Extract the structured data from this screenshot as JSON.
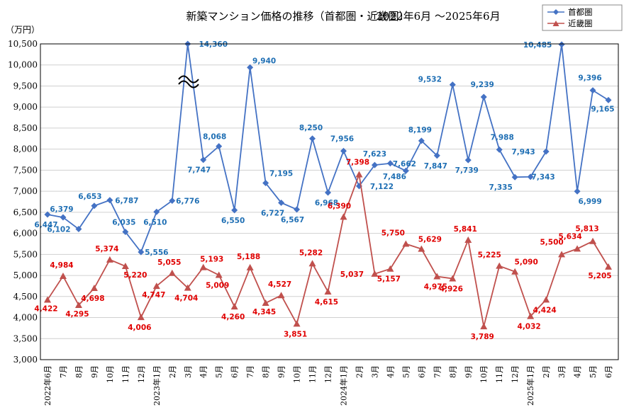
{
  "chart_data": {
    "type": "line",
    "title": "新築マンション価格の推移（首都圏・近畿圏）",
    "period": "2022年6月 〜2025年6月",
    "y_unit": "（万円）",
    "ylim": [
      3000,
      10500
    ],
    "y_ticks": [
      "3,000",
      "3,500",
      "4,000",
      "4,500",
      "5,000",
      "5,500",
      "6,000",
      "6,500",
      "7,000",
      "7,500",
      "8,000",
      "8,500",
      "9,000",
      "9,500",
      "10,000",
      "10,500"
    ],
    "grid": true,
    "legend_position": "top-right",
    "categories": [
      "2022年6月",
      "7月",
      "8月",
      "9月",
      "10月",
      "11月",
      "12月",
      "2023年1月",
      "2月",
      "3月",
      "4月",
      "5月",
      "6月",
      "7月",
      "8月",
      "9月",
      "10月",
      "11月",
      "12月",
      "2024年1月",
      "2月",
      "3月",
      "4月",
      "5月",
      "6月",
      "7月",
      "8月",
      "9月",
      "10月",
      "11月",
      "12月",
      "2025年1月",
      "2月",
      "3月",
      "4月",
      "5月",
      "6月"
    ],
    "axis_break_note": "≈",
    "series": [
      {
        "name": "首都圏",
        "color": "#4472C4",
        "marker": "diamond",
        "values": [
          6447,
          6379,
          6102,
          6653,
          6787,
          6035,
          5556,
          6510,
          6776,
          14360,
          7747,
          8068,
          6550,
          9940,
          7195,
          6727,
          6567,
          8250,
          6968,
          7956,
          7122,
          7623,
          7662,
          7486,
          8199,
          7847,
          9532,
          7739,
          9239,
          7988,
          7335,
          7343,
          7943,
          10485,
          6999,
          9396,
          9165
        ],
        "labels": [
          "6,447",
          "6,379",
          "6,102",
          "6,653",
          "6,787",
          "6,035",
          "5,556",
          "6,510",
          "6,776",
          "14,360",
          "7,747",
          "8,068",
          "6,550",
          "9,940",
          "",
          "",
          "6,567",
          "8,250",
          "6,968",
          "7,956",
          "7,122",
          "7,623",
          "7,662",
          "7,486",
          "8,199",
          "7,847",
          "9,532",
          "7,739",
          "9,239",
          "7,988",
          "7,335",
          "7,343",
          "7,943",
          "10,485",
          "6,999",
          "9,396",
          "9,165"
        ],
        "extra_labels": [
          "7,195",
          "6,727"
        ]
      },
      {
        "name": "近畿圏",
        "color": "#C0504D",
        "marker": "triangle",
        "values": [
          4422,
          4984,
          4295,
          4698,
          5374,
          5220,
          4006,
          4747,
          5055,
          4704,
          5193,
          5009,
          4260,
          5188,
          4345,
          4527,
          3851,
          5282,
          4615,
          6390,
          7398,
          5037,
          5157,
          5750,
          5629,
          4975,
          4926,
          5841,
          3789,
          5225,
          5090,
          4032,
          4424,
          5500,
          5634,
          5813,
          5205
        ],
        "labels": [
          "4,422",
          "4,984",
          "4,295",
          "4,698",
          "5,374",
          "5,220",
          "4,006",
          "4,747",
          "5,055",
          "4,704",
          "5,193",
          "5,009",
          "4,260",
          "5,188",
          "4,345",
          "4,527",
          "3,851",
          "5,282",
          "4,615",
          "6,390",
          "7,398",
          "5,037",
          "5,157",
          "5,750",
          "5,629",
          "4,975",
          "4,926",
          "5,841",
          "3,789",
          "5,225",
          "5,090",
          "4,032",
          "4,424",
          "5,500",
          "5,634",
          "5,813",
          "5,205"
        ]
      }
    ]
  }
}
